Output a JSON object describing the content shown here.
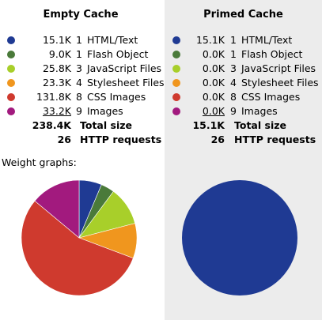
{
  "empty_cache": {
    "title": "Empty Cache",
    "rows": [
      {
        "size": "15.1K",
        "count": "1",
        "label": "HTML/Text",
        "color": "#1f3a93"
      },
      {
        "size": "9.0K",
        "count": "1",
        "label": "Flash Object",
        "color": "#4a7a3a"
      },
      {
        "size": "25.8K",
        "count": "3",
        "label": "JavaScript Files",
        "color": "#a8cf2a"
      },
      {
        "size": "23.3K",
        "count": "4",
        "label": "Stylesheet Files",
        "color": "#f0961e"
      },
      {
        "size": "131.8K",
        "count": "8",
        "label": "CSS Images",
        "color": "#cf3a2e"
      },
      {
        "size": "33.2K",
        "count": "9",
        "label": "Images",
        "color": "#a21a7e"
      }
    ],
    "total_size": {
      "value": "238.4K",
      "label": "Total size"
    },
    "http_requests": {
      "value": "26",
      "label": "HTTP requests"
    }
  },
  "primed_cache": {
    "title": "Primed Cache",
    "rows": [
      {
        "size": "15.1K",
        "count": "1",
        "label": "HTML/Text",
        "color": "#1f3a93"
      },
      {
        "size": "0.0K",
        "count": "1",
        "label": "Flash Object",
        "color": "#4a7a3a"
      },
      {
        "size": "0.0K",
        "count": "3",
        "label": "JavaScript Files",
        "color": "#a8cf2a"
      },
      {
        "size": "0.0K",
        "count": "4",
        "label": "Stylesheet Files",
        "color": "#f0961e"
      },
      {
        "size": "0.0K",
        "count": "8",
        "label": "CSS Images",
        "color": "#cf3a2e"
      },
      {
        "size": "0.0K",
        "count": "9",
        "label": "Images",
        "color": "#a21a7e"
      }
    ],
    "total_size": {
      "value": "15.1K",
      "label": "Total size"
    },
    "http_requests": {
      "value": "26",
      "label": "HTTP requests"
    }
  },
  "weight_graphs_label": "Weight graphs:",
  "chart_data": [
    {
      "type": "pie",
      "categories": [
        "HTML/Text",
        "Flash Object",
        "JavaScript Files",
        "Stylesheet Files",
        "CSS Images",
        "Images"
      ],
      "values": [
        15.1,
        9.0,
        25.8,
        23.3,
        131.8,
        33.2
      ],
      "colors": [
        "#1f3a93",
        "#4a7a3a",
        "#a8cf2a",
        "#f0961e",
        "#cf3a2e",
        "#a21a7e"
      ]
    },
    {
      "type": "pie",
      "categories": [
        "HTML/Text",
        "Flash Object",
        "JavaScript Files",
        "Stylesheet Files",
        "CSS Images",
        "Images"
      ],
      "values": [
        15.1,
        0.0,
        0.0,
        0.0,
        0.0,
        0.0
      ],
      "colors": [
        "#1f3a93",
        "#4a7a3a",
        "#a8cf2a",
        "#f0961e",
        "#cf3a2e",
        "#a21a7e"
      ]
    }
  ]
}
